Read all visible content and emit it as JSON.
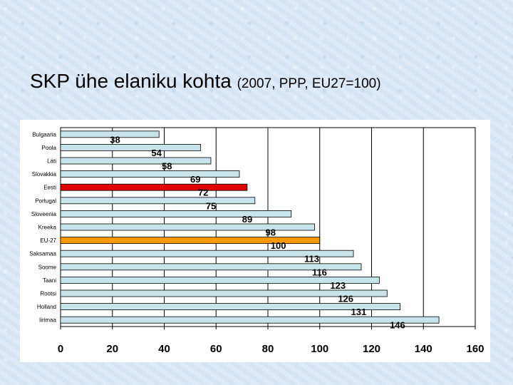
{
  "slide": {
    "title_main": "SKP ühe elaniku kohta",
    "title_sub": "(2007, PPP, EU27=100)"
  },
  "colors": {
    "default_bar": "#c6e4ea",
    "highlight_estonia": "#e00000",
    "highlight_eu": "#ff9900",
    "grid": "#000000"
  },
  "chart_data": {
    "type": "bar",
    "orientation": "horizontal",
    "categories": [
      "Bulgaaria",
      "Poola",
      "Läti",
      "Slovakkia",
      "Eesti",
      "Portugal",
      "Sloveenia",
      "Kreeka",
      "EU-27",
      "Saksamaa",
      "Soome",
      "Taani",
      "Rootsi",
      "Holland",
      "Iirimaa"
    ],
    "values": [
      38,
      54,
      58,
      69,
      72,
      75,
      89,
      98,
      100,
      113,
      116,
      123,
      126,
      131,
      146
    ],
    "data_labels": [
      "38",
      "54",
      "58",
      "69",
      "72",
      "75",
      "89",
      "98",
      "100",
      "113",
      "116",
      "123",
      "126",
      "131",
      "146"
    ],
    "highlights": {
      "Eesti": "#e00000",
      "EU-27": "#ff9900"
    },
    "xlim": [
      0,
      160
    ],
    "xticks": [
      "0",
      "20",
      "40",
      "60",
      "80",
      "100",
      "120",
      "140",
      "160"
    ],
    "grid": true,
    "legend": false
  }
}
